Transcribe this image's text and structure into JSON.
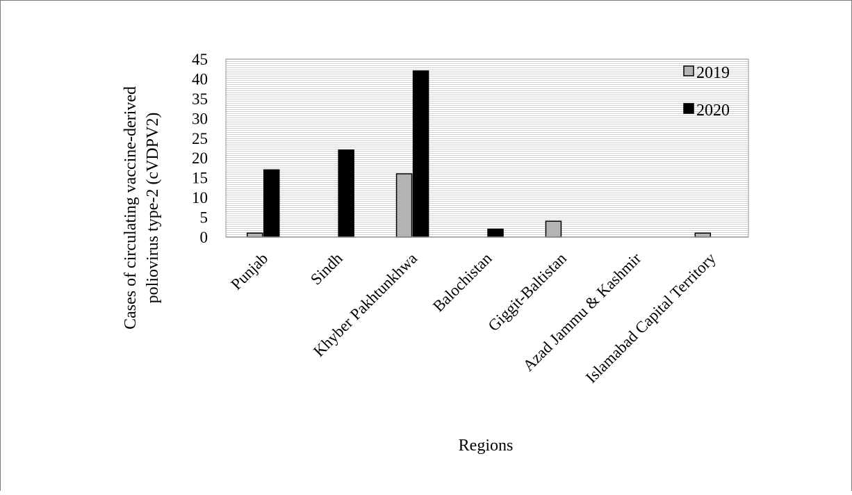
{
  "chart_data": {
    "type": "bar",
    "title": "",
    "xlabel": "Regions",
    "ylabel_lines": [
      "Cases of circulating vaccine-derived",
      "poliovirus type-2 (cVDPV2)"
    ],
    "ylim": [
      0,
      45
    ],
    "yticks": [
      0,
      5,
      10,
      15,
      20,
      25,
      30,
      35,
      40,
      45
    ],
    "grid": "horizontal fine lines",
    "legend_position": "top-right",
    "categories": [
      "Punjab",
      "Sindh",
      "Khyber Pakhtunkhwa",
      "Balochistan",
      "Giggit-Baltistan",
      "Azad Jammu & Kashmir",
      "Islamabad Capital Territory"
    ],
    "series": [
      {
        "name": "2019",
        "color": "#b3b3b3",
        "values": [
          1,
          0,
          16,
          0,
          4,
          0,
          1
        ]
      },
      {
        "name": "2020",
        "color": "#000000",
        "values": [
          17,
          22,
          42,
          2,
          0,
          0,
          0
        ]
      }
    ]
  }
}
